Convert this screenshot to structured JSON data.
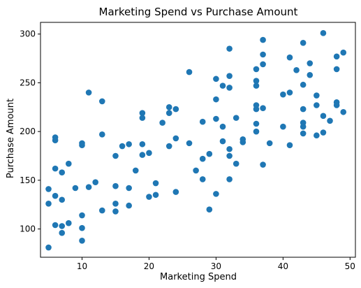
{
  "chart_data": {
    "type": "scatter",
    "title": "Marketing Spend vs Purchase Amount",
    "xlabel": "Marketing Spend",
    "ylabel": "Purchase Amount",
    "xlim": [
      3.8,
      50.8
    ],
    "ylim": [
      71,
      312
    ],
    "xticks": [
      10,
      20,
      30,
      40,
      50
    ],
    "yticks": [
      100,
      150,
      200,
      250,
      300
    ],
    "grid": false,
    "legend": "none",
    "marker_color": "#1f77b4",
    "series": [
      {
        "points": [
          [
            5,
            81
          ],
          [
            5,
            126
          ],
          [
            5,
            141
          ],
          [
            6,
            104
          ],
          [
            6,
            134
          ],
          [
            6,
            162
          ],
          [
            6,
            191
          ],
          [
            6,
            194
          ],
          [
            7,
            96
          ],
          [
            7,
            103
          ],
          [
            7,
            130
          ],
          [
            7,
            158
          ],
          [
            8,
            106
          ],
          [
            8,
            167
          ],
          [
            9,
            142
          ],
          [
            10,
            88
          ],
          [
            10,
            101
          ],
          [
            10,
            114
          ],
          [
            10,
            186
          ],
          [
            10,
            188
          ],
          [
            11,
            143
          ],
          [
            11,
            240
          ],
          [
            12,
            148
          ],
          [
            13,
            119
          ],
          [
            13,
            197
          ],
          [
            13,
            231
          ],
          [
            15,
            118
          ],
          [
            15,
            126
          ],
          [
            15,
            144
          ],
          [
            15,
            175
          ],
          [
            16,
            185
          ],
          [
            17,
            124
          ],
          [
            17,
            142
          ],
          [
            17,
            187
          ],
          [
            18,
            160
          ],
          [
            19,
            176
          ],
          [
            19,
            187
          ],
          [
            19,
            214
          ],
          [
            19,
            219
          ],
          [
            20,
            133
          ],
          [
            20,
            178
          ],
          [
            21,
            135
          ],
          [
            21,
            147
          ],
          [
            22,
            209
          ],
          [
            23,
            185
          ],
          [
            23,
            219
          ],
          [
            23,
            225
          ],
          [
            24,
            138
          ],
          [
            24,
            193
          ],
          [
            24,
            223
          ],
          [
            26,
            188
          ],
          [
            26,
            261
          ],
          [
            27,
            160
          ],
          [
            28,
            151
          ],
          [
            28,
            172
          ],
          [
            28,
            210
          ],
          [
            29,
            120
          ],
          [
            29,
            177
          ],
          [
            30,
            136
          ],
          [
            30,
            213
          ],
          [
            30,
            233
          ],
          [
            30,
            254
          ],
          [
            31,
            190
          ],
          [
            31,
            205
          ],
          [
            31,
            247
          ],
          [
            32,
            151
          ],
          [
            32,
            175
          ],
          [
            32,
            182
          ],
          [
            32,
            245
          ],
          [
            32,
            257
          ],
          [
            32,
            285
          ],
          [
            33,
            167
          ],
          [
            33,
            214
          ],
          [
            34,
            189
          ],
          [
            34,
            192
          ],
          [
            36,
            200
          ],
          [
            36,
            208
          ],
          [
            36,
            223
          ],
          [
            36,
            227
          ],
          [
            36,
            247
          ],
          [
            36,
            252
          ],
          [
            36,
            264
          ],
          [
            37,
            166
          ],
          [
            37,
            224
          ],
          [
            37,
            269
          ],
          [
            37,
            279
          ],
          [
            37,
            294
          ],
          [
            38,
            188
          ],
          [
            40,
            205
          ],
          [
            40,
            238
          ],
          [
            41,
            186
          ],
          [
            41,
            240
          ],
          [
            41,
            276
          ],
          [
            42,
            263
          ],
          [
            43,
            198
          ],
          [
            43,
            205
          ],
          [
            43,
            209
          ],
          [
            43,
            223
          ],
          [
            43,
            248
          ],
          [
            43,
            291
          ],
          [
            44,
            258
          ],
          [
            44,
            270
          ],
          [
            45,
            196
          ],
          [
            45,
            227
          ],
          [
            45,
            237
          ],
          [
            46,
            199
          ],
          [
            46,
            216
          ],
          [
            46,
            301
          ],
          [
            47,
            211
          ],
          [
            48,
            227
          ],
          [
            48,
            230
          ],
          [
            48,
            264
          ],
          [
            48,
            277
          ],
          [
            49,
            220
          ],
          [
            49,
            281
          ]
        ]
      }
    ]
  }
}
